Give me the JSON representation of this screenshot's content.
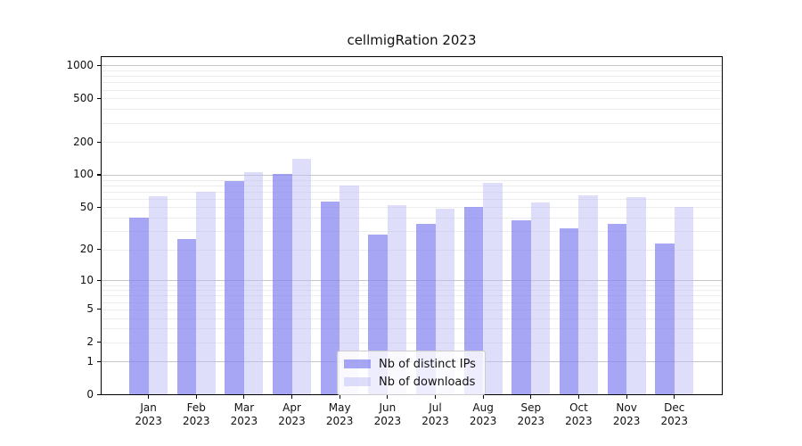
{
  "figure": {
    "background": "#ffffff",
    "axis_color": "#000000",
    "grid_major_color": "#c6c6c6",
    "grid_minor_color": "#ededed"
  },
  "chart_data": {
    "type": "bar",
    "title": "cellmigRation 2023",
    "categories": [
      "Jan 2023",
      "Feb 2023",
      "Mar 2023",
      "Apr 2023",
      "May 2023",
      "Jun 2023",
      "Jul 2023",
      "Aug 2023",
      "Sep 2023",
      "Oct 2023",
      "Nov 2023",
      "Dec 2023"
    ],
    "series": [
      {
        "name": "Nb of distinct IPs",
        "color": "#8484f0",
        "alpha": 0.72,
        "values": [
          40,
          25,
          88,
          101,
          57,
          28,
          35,
          50,
          38,
          32,
          35,
          23
        ]
      },
      {
        "name": "Nb of downloads",
        "color": "#bebef8",
        "alpha": 0.5,
        "values": [
          63,
          70,
          105,
          140,
          80,
          52,
          49,
          85,
          55,
          65,
          62,
          50
        ]
      }
    ],
    "xlabel": "",
    "ylabel": "",
    "y_scale": "log1p",
    "y_ticks": [
      0,
      1,
      2,
      5,
      10,
      20,
      50,
      100,
      200,
      500,
      1000
    ],
    "ylim": [
      0,
      1200
    ],
    "grid": "horizontal, major and minor",
    "legend_position": "lower center"
  },
  "legend": {
    "items": [
      {
        "label": "Nb of distinct IPs"
      },
      {
        "label": "Nb of downloads"
      }
    ]
  }
}
